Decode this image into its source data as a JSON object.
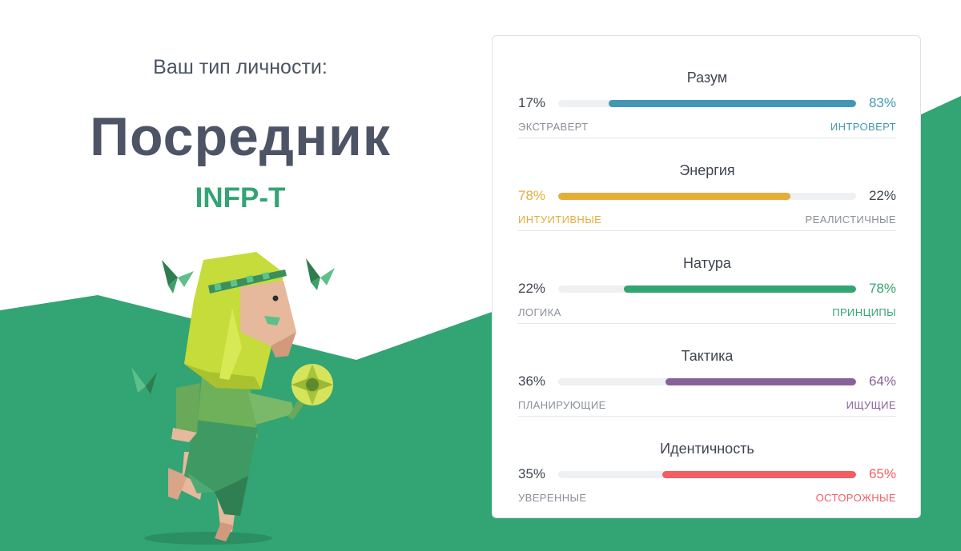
{
  "header": {
    "subtitle": "Ваш тип личности:",
    "type_name": "Посредник",
    "type_code": "INFP-T"
  },
  "colors": {
    "brand_green": "#33a474",
    "mind": "#4298b4",
    "energy": "#e4ae3a",
    "nature": "#33a474",
    "tactics": "#88619a",
    "identity": "#f25e62"
  },
  "traits": [
    {
      "title": "Разум",
      "left_pct": "17%",
      "right_pct": "83%",
      "left_label": "ЭКСТРАВЕРТ",
      "right_label": "ИНТРОВЕРТ",
      "value": 83,
      "dominant": "right",
      "color": "#4298b4"
    },
    {
      "title": "Энергия",
      "left_pct": "78%",
      "right_pct": "22%",
      "left_label": "ИНТУИТИВНЫЕ",
      "right_label": "РЕАЛИСТИЧНЫЕ",
      "value": 78,
      "dominant": "left",
      "color": "#e4ae3a"
    },
    {
      "title": "Натура",
      "left_pct": "22%",
      "right_pct": "78%",
      "left_label": "ЛОГИКА",
      "right_label": "ПРИНЦИПЫ",
      "value": 78,
      "dominant": "right",
      "color": "#33a474"
    },
    {
      "title": "Тактика",
      "left_pct": "36%",
      "right_pct": "64%",
      "left_label": "ПЛАНИРУЮЩИЕ",
      "right_label": "ИЩУЩИЕ",
      "value": 64,
      "dominant": "right",
      "color": "#88619a"
    },
    {
      "title": "Идентичность",
      "left_pct": "35%",
      "right_pct": "65%",
      "left_label": "УВЕРЕННЫЕ",
      "right_label": "ОСТОРОЖНЫЕ",
      "value": 65,
      "dominant": "right",
      "color": "#f25e62"
    }
  ]
}
